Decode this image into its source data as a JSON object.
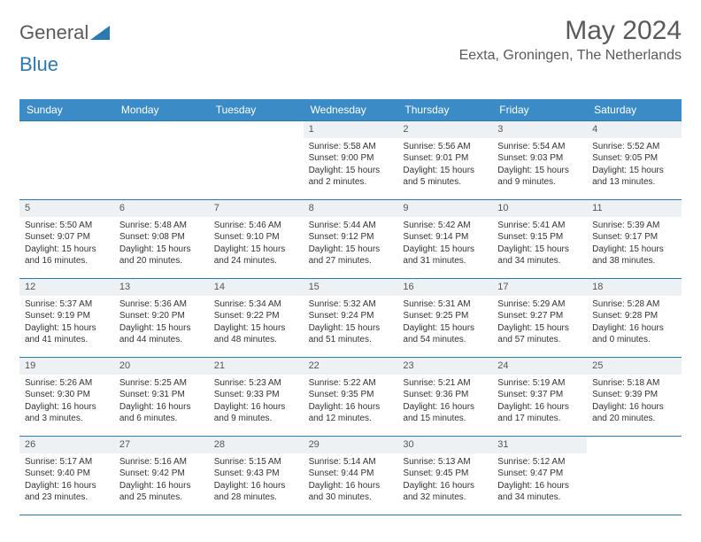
{
  "logo": {
    "part1": "General",
    "part2": "Blue"
  },
  "title": "May 2024",
  "location": "Eexta, Groningen, The Netherlands",
  "colors": {
    "header_bg": "#3b8bc6",
    "rule": "#2a7ab0",
    "daynum_bg": "#eef1f3"
  },
  "day_names": [
    "Sunday",
    "Monday",
    "Tuesday",
    "Wednesday",
    "Thursday",
    "Friday",
    "Saturday"
  ],
  "weeks": [
    [
      {
        "empty": true
      },
      {
        "empty": true
      },
      {
        "empty": true
      },
      {
        "n": "1",
        "sunrise": "5:58 AM",
        "sunset": "9:00 PM",
        "daylight": "15 hours and 2 minutes."
      },
      {
        "n": "2",
        "sunrise": "5:56 AM",
        "sunset": "9:01 PM",
        "daylight": "15 hours and 5 minutes."
      },
      {
        "n": "3",
        "sunrise": "5:54 AM",
        "sunset": "9:03 PM",
        "daylight": "15 hours and 9 minutes."
      },
      {
        "n": "4",
        "sunrise": "5:52 AM",
        "sunset": "9:05 PM",
        "daylight": "15 hours and 13 minutes."
      }
    ],
    [
      {
        "n": "5",
        "sunrise": "5:50 AM",
        "sunset": "9:07 PM",
        "daylight": "15 hours and 16 minutes."
      },
      {
        "n": "6",
        "sunrise": "5:48 AM",
        "sunset": "9:08 PM",
        "daylight": "15 hours and 20 minutes."
      },
      {
        "n": "7",
        "sunrise": "5:46 AM",
        "sunset": "9:10 PM",
        "daylight": "15 hours and 24 minutes."
      },
      {
        "n": "8",
        "sunrise": "5:44 AM",
        "sunset": "9:12 PM",
        "daylight": "15 hours and 27 minutes."
      },
      {
        "n": "9",
        "sunrise": "5:42 AM",
        "sunset": "9:14 PM",
        "daylight": "15 hours and 31 minutes."
      },
      {
        "n": "10",
        "sunrise": "5:41 AM",
        "sunset": "9:15 PM",
        "daylight": "15 hours and 34 minutes."
      },
      {
        "n": "11",
        "sunrise": "5:39 AM",
        "sunset": "9:17 PM",
        "daylight": "15 hours and 38 minutes."
      }
    ],
    [
      {
        "n": "12",
        "sunrise": "5:37 AM",
        "sunset": "9:19 PM",
        "daylight": "15 hours and 41 minutes."
      },
      {
        "n": "13",
        "sunrise": "5:36 AM",
        "sunset": "9:20 PM",
        "daylight": "15 hours and 44 minutes."
      },
      {
        "n": "14",
        "sunrise": "5:34 AM",
        "sunset": "9:22 PM",
        "daylight": "15 hours and 48 minutes."
      },
      {
        "n": "15",
        "sunrise": "5:32 AM",
        "sunset": "9:24 PM",
        "daylight": "15 hours and 51 minutes."
      },
      {
        "n": "16",
        "sunrise": "5:31 AM",
        "sunset": "9:25 PM",
        "daylight": "15 hours and 54 minutes."
      },
      {
        "n": "17",
        "sunrise": "5:29 AM",
        "sunset": "9:27 PM",
        "daylight": "15 hours and 57 minutes."
      },
      {
        "n": "18",
        "sunrise": "5:28 AM",
        "sunset": "9:28 PM",
        "daylight": "16 hours and 0 minutes."
      }
    ],
    [
      {
        "n": "19",
        "sunrise": "5:26 AM",
        "sunset": "9:30 PM",
        "daylight": "16 hours and 3 minutes."
      },
      {
        "n": "20",
        "sunrise": "5:25 AM",
        "sunset": "9:31 PM",
        "daylight": "16 hours and 6 minutes."
      },
      {
        "n": "21",
        "sunrise": "5:23 AM",
        "sunset": "9:33 PM",
        "daylight": "16 hours and 9 minutes."
      },
      {
        "n": "22",
        "sunrise": "5:22 AM",
        "sunset": "9:35 PM",
        "daylight": "16 hours and 12 minutes."
      },
      {
        "n": "23",
        "sunrise": "5:21 AM",
        "sunset": "9:36 PM",
        "daylight": "16 hours and 15 minutes."
      },
      {
        "n": "24",
        "sunrise": "5:19 AM",
        "sunset": "9:37 PM",
        "daylight": "16 hours and 17 minutes."
      },
      {
        "n": "25",
        "sunrise": "5:18 AM",
        "sunset": "9:39 PM",
        "daylight": "16 hours and 20 minutes."
      }
    ],
    [
      {
        "n": "26",
        "sunrise": "5:17 AM",
        "sunset": "9:40 PM",
        "daylight": "16 hours and 23 minutes."
      },
      {
        "n": "27",
        "sunrise": "5:16 AM",
        "sunset": "9:42 PM",
        "daylight": "16 hours and 25 minutes."
      },
      {
        "n": "28",
        "sunrise": "5:15 AM",
        "sunset": "9:43 PM",
        "daylight": "16 hours and 28 minutes."
      },
      {
        "n": "29",
        "sunrise": "5:14 AM",
        "sunset": "9:44 PM",
        "daylight": "16 hours and 30 minutes."
      },
      {
        "n": "30",
        "sunrise": "5:13 AM",
        "sunset": "9:45 PM",
        "daylight": "16 hours and 32 minutes."
      },
      {
        "n": "31",
        "sunrise": "5:12 AM",
        "sunset": "9:47 PM",
        "daylight": "16 hours and 34 minutes."
      },
      {
        "empty": true
      }
    ]
  ],
  "labels": {
    "sunrise": "Sunrise: ",
    "sunset": "Sunset: ",
    "daylight": "Daylight: "
  }
}
